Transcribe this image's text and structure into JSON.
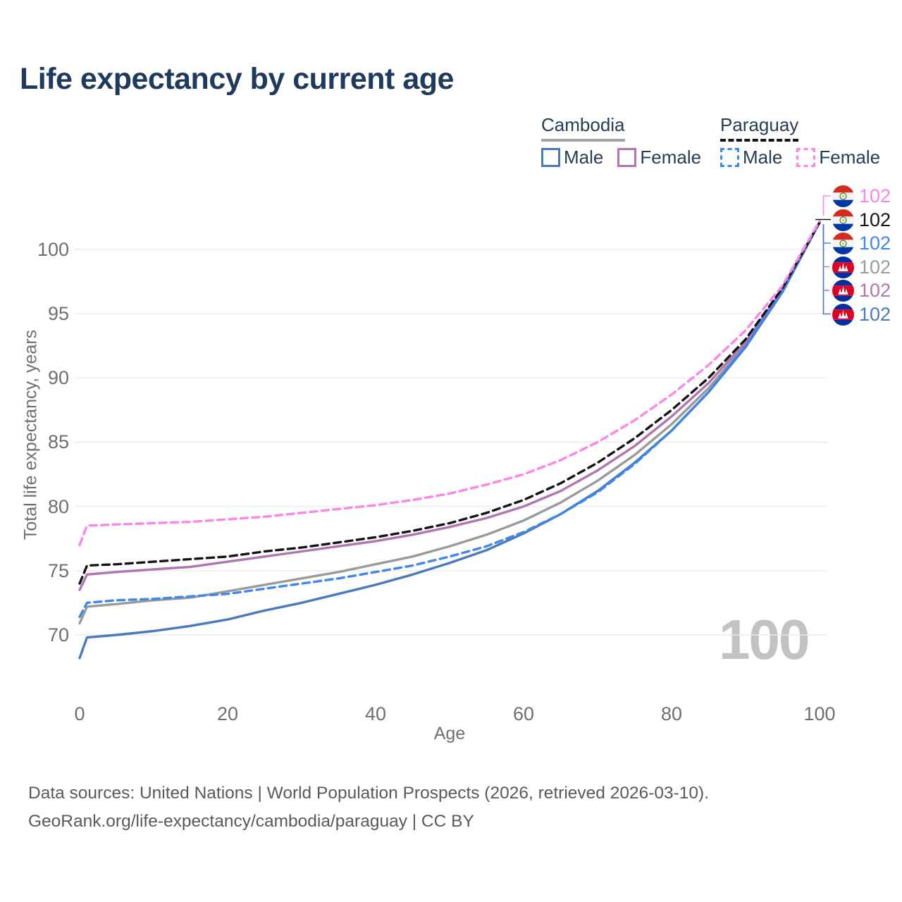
{
  "page": {
    "title": "Life expectancy by current age"
  },
  "legend": {
    "groups": [
      {
        "country": "Cambodia",
        "line_style": "solid",
        "line_color": "#a3a3a3",
        "items": [
          {
            "label": "Male",
            "swatch_color": "#4b79bd",
            "swatch_style": "solid"
          },
          {
            "label": "Female",
            "swatch_color": "#b175af",
            "swatch_style": "solid"
          }
        ]
      },
      {
        "country": "Paraguay",
        "line_style": "dashed",
        "line_color": "#141414",
        "items": [
          {
            "label": "Male",
            "swatch_color": "#3f87f0",
            "swatch_style": "dashed"
          },
          {
            "label": "Female",
            "swatch_color": "#fc85e6",
            "swatch_style": "dashed"
          }
        ]
      }
    ]
  },
  "chart_data": {
    "type": "line",
    "title": "Life expectancy by current age",
    "xlabel": "Age",
    "ylabel": "Total life expectancy, years",
    "xlim": [
      0,
      100
    ],
    "ylim": [
      66,
      103
    ],
    "xticks": [
      0,
      20,
      40,
      60,
      80,
      100
    ],
    "yticks": [
      70,
      75,
      80,
      85,
      90,
      95,
      100
    ],
    "grid": "horizontal",
    "legend_position": "top-right",
    "x": [
      0,
      1,
      5,
      10,
      15,
      20,
      25,
      30,
      35,
      40,
      45,
      50,
      55,
      60,
      65,
      70,
      75,
      80,
      85,
      90,
      95,
      100
    ],
    "series": [
      {
        "name": "Cambodia Both sexes",
        "country": "Cambodia",
        "sex": "Both",
        "color": "#9a9a9a",
        "dash": "solid",
        "values": [
          70.9,
          72.2,
          72.4,
          72.7,
          72.9,
          73.4,
          73.9,
          74.4,
          74.9,
          75.5,
          76.1,
          76.9,
          77.8,
          78.9,
          80.3,
          82.0,
          84.0,
          86.4,
          89.2,
          92.6,
          96.8,
          102.1
        ]
      },
      {
        "name": "Cambodia Male",
        "country": "Cambodia",
        "sex": "Male",
        "color": "#4b79bd",
        "dash": "solid",
        "values": [
          68.2,
          69.8,
          70.0,
          70.3,
          70.7,
          71.2,
          71.9,
          72.5,
          73.2,
          73.9,
          74.7,
          75.6,
          76.6,
          77.9,
          79.4,
          81.2,
          83.4,
          85.9,
          88.9,
          92.4,
          96.7,
          102.1
        ]
      },
      {
        "name": "Cambodia Female",
        "country": "Cambodia",
        "sex": "Female",
        "color": "#b175af",
        "dash": "solid",
        "values": [
          73.5,
          74.7,
          74.9,
          75.1,
          75.3,
          75.7,
          76.1,
          76.5,
          76.9,
          77.3,
          77.8,
          78.4,
          79.1,
          80.0,
          81.2,
          82.8,
          84.7,
          87.0,
          89.6,
          92.8,
          96.9,
          102.1
        ]
      },
      {
        "name": "Paraguay Male",
        "country": "Paraguay",
        "sex": "Male",
        "color": "#3f87f0",
        "dash": "dashed",
        "values": [
          71.4,
          72.5,
          72.7,
          72.8,
          73.0,
          73.2,
          73.6,
          74.0,
          74.4,
          74.9,
          75.4,
          76.1,
          76.9,
          78.0,
          79.4,
          81.1,
          83.3,
          85.9,
          88.9,
          92.5,
          96.8,
          102.1
        ]
      },
      {
        "name": "Paraguay Both sexes",
        "country": "Paraguay",
        "sex": "Both",
        "color": "#141414",
        "dash": "dashed",
        "values": [
          74.0,
          75.4,
          75.5,
          75.7,
          75.9,
          76.1,
          76.5,
          76.8,
          77.2,
          77.6,
          78.1,
          78.7,
          79.5,
          80.5,
          81.8,
          83.4,
          85.3,
          87.5,
          90.0,
          93.0,
          97.0,
          102.1
        ]
      },
      {
        "name": "Paraguay Female",
        "country": "Paraguay",
        "sex": "Female",
        "color": "#fc85e6",
        "dash": "dashed",
        "values": [
          77.0,
          78.5,
          78.6,
          78.7,
          78.8,
          79.0,
          79.2,
          79.5,
          79.8,
          80.1,
          80.5,
          81.0,
          81.7,
          82.5,
          83.6,
          85.0,
          86.7,
          88.7,
          91.0,
          93.7,
          97.2,
          102.2
        ]
      }
    ],
    "end_labels": [
      {
        "series": "Paraguay Female",
        "flag": "paraguay",
        "value": 102,
        "color": "#fc85e6"
      },
      {
        "series": "Paraguay Both sexes",
        "flag": "paraguay",
        "value": 102,
        "color": "#141414"
      },
      {
        "series": "Paraguay Male",
        "flag": "paraguay",
        "value": 102,
        "color": "#3f87f0"
      },
      {
        "series": "Cambodia Both sexes",
        "flag": "cambodia",
        "value": 102,
        "color": "#9a9a9a"
      },
      {
        "series": "Cambodia Female",
        "flag": "cambodia",
        "value": 102,
        "color": "#b175af"
      },
      {
        "series": "Cambodia Male",
        "flag": "cambodia",
        "value": 102,
        "color": "#4b79bd"
      }
    ],
    "watermark": "100"
  },
  "footer": {
    "line1": "Data sources: United Nations | World Population Prospects (2026, retrieved 2026-03-10).",
    "line2": "GeoRank.org/life-expectancy/cambodia/paraguay | CC BY"
  }
}
